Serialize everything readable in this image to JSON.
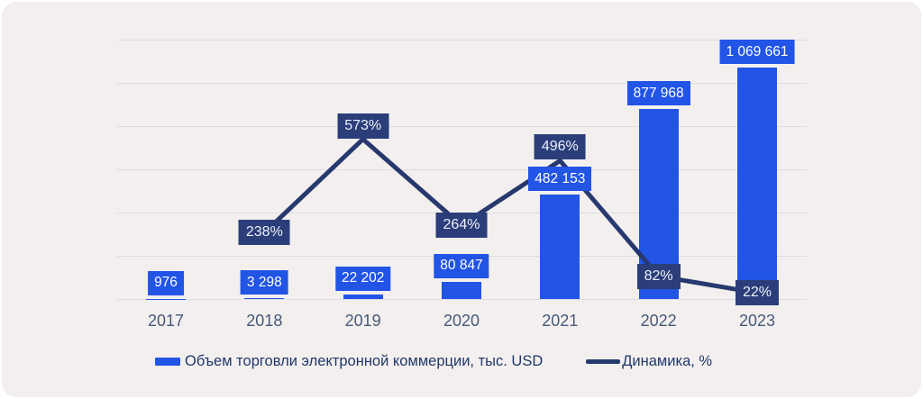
{
  "colors": {
    "bar_blue": "#2254e6",
    "navy_box": "#2b3e7a",
    "line_navy": "#26386e",
    "card_background": "#f2efee",
    "gridline": "#dcdbe0",
    "axis_text": "#475978",
    "legend_text": "#20386b",
    "value_label_text": "#ffffff",
    "percent_label_text": "#edf0fa"
  },
  "chart_data": {
    "type": "combo",
    "title": "",
    "categories": [
      "2017",
      "2018",
      "2019",
      "2020",
      "2021",
      "2022",
      "2023"
    ],
    "series": [
      {
        "name": "Объем торговли электронной коммерции, тыс. USD",
        "type": "bar",
        "values": [
          976,
          3298,
          22202,
          80847,
          482153,
          877968,
          1069661
        ],
        "labels": [
          "976",
          "3 298",
          "22 202",
          "80 847",
          "482 153",
          "877 968",
          "1 069 661"
        ],
        "color": "#2254e6"
      },
      {
        "name": "Динамика, %",
        "type": "line",
        "values": [
          null,
          238,
          573,
          264,
          496,
          82,
          22
        ],
        "labels": [
          null,
          "238%",
          "573%",
          "264%",
          "496%",
          "82%",
          "22%"
        ],
        "label_position": [
          null,
          "center",
          "above",
          "center",
          "above",
          "center",
          "center"
        ],
        "color": "#26386e"
      }
    ],
    "xlabel": "",
    "ylabel": "",
    "value_axis": {
      "visible": false,
      "min": 0,
      "max": 1200000
    },
    "percent_axis": {
      "visible": false,
      "min": 0,
      "max": 930
    },
    "grid": true,
    "gridline_count": 7,
    "legend_position": "bottom"
  }
}
